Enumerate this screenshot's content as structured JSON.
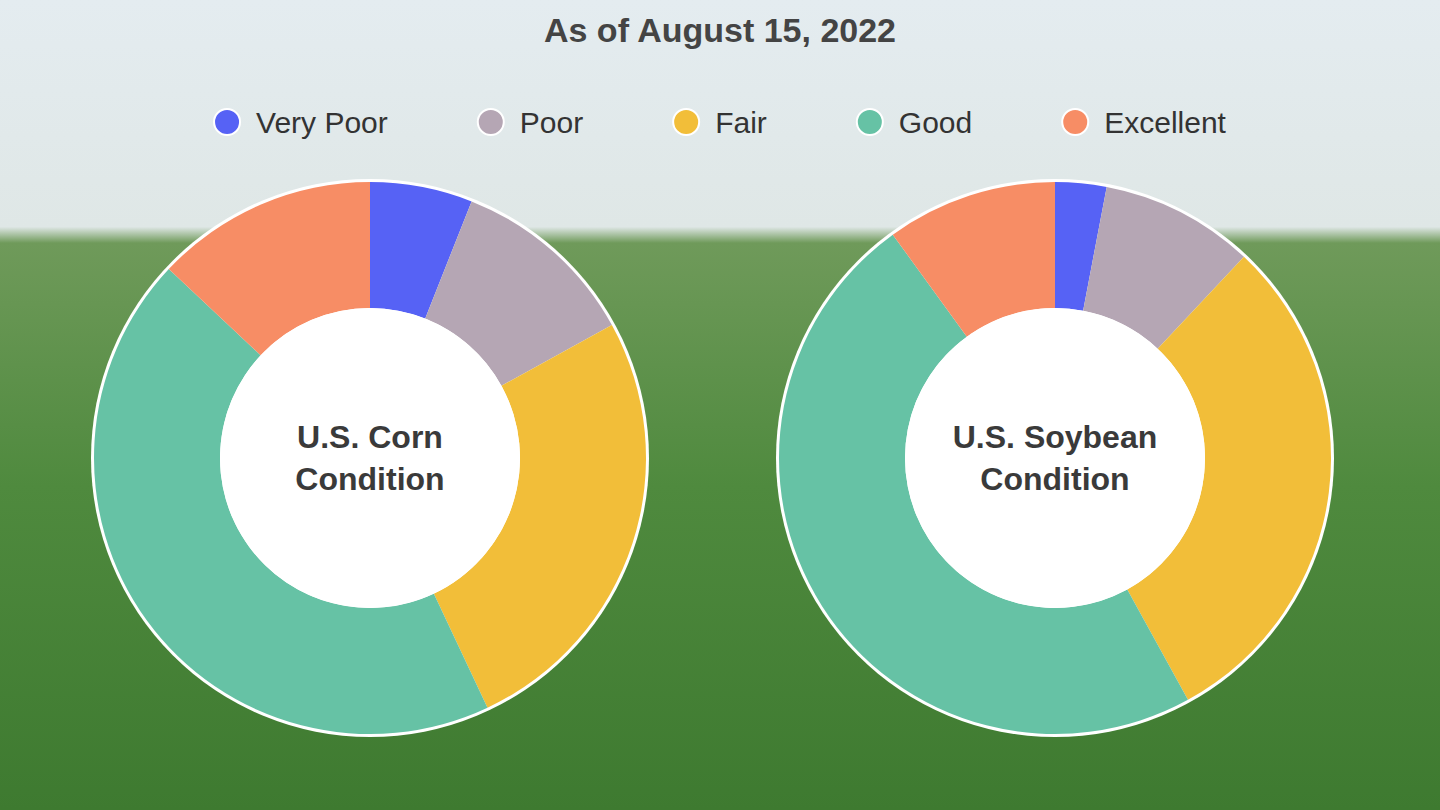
{
  "title": "As of August 15, 2022",
  "chart_data": [
    {
      "type": "pie",
      "title": "U.S. Corn Condition",
      "categories": [
        "Very Poor",
        "Poor",
        "Fair",
        "Good",
        "Excellent"
      ],
      "values": [
        6,
        11,
        26,
        44,
        13
      ],
      "colors": [
        "#5662f5",
        "#b5a6b4",
        "#f2be39",
        "#66c2a5",
        "#f78d65"
      ],
      "legend": "top"
    },
    {
      "type": "pie",
      "title": "U.S. Soybean Condition",
      "categories": [
        "Very Poor",
        "Poor",
        "Fair",
        "Good",
        "Excellent"
      ],
      "values": [
        3,
        9,
        30,
        48,
        10
      ],
      "colors": [
        "#5662f5",
        "#b5a6b4",
        "#f2be39",
        "#66c2a5",
        "#f78d65"
      ],
      "legend": "top"
    }
  ]
}
